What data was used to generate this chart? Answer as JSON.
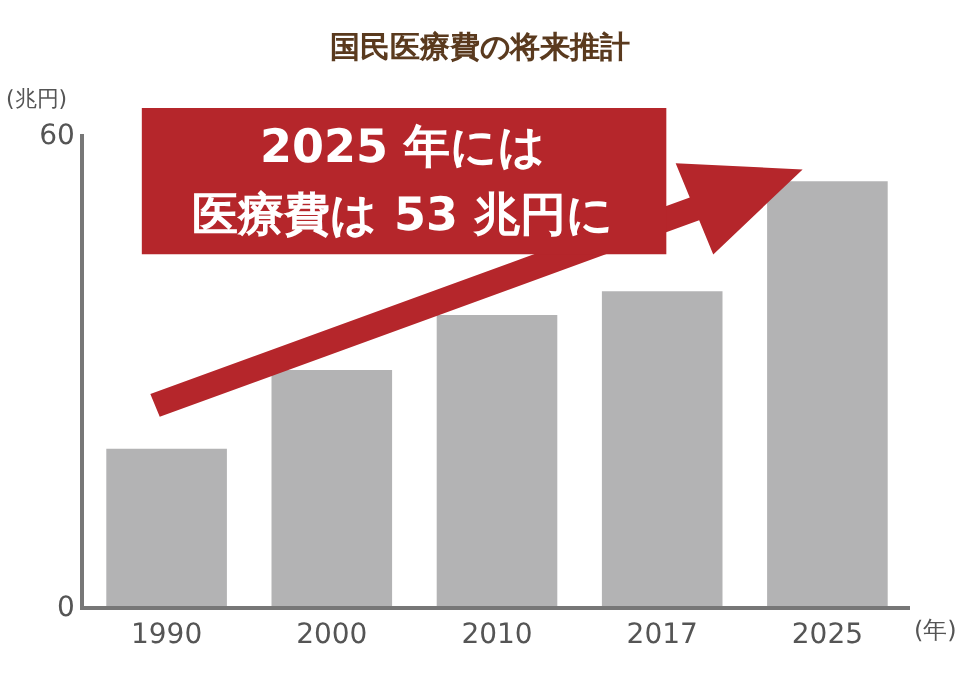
{
  "chart_data": {
    "type": "bar",
    "title": "国民医療費の将来推計",
    "categories": [
      "1990",
      "2000",
      "2010",
      "2017",
      "2025"
    ],
    "values": [
      20,
      30,
      37,
      40,
      54
    ],
    "color": "#b3b3b4",
    "ylabel": "(兆円)",
    "xlabel": "(年)",
    "ylim": [
      0,
      60
    ],
    "yticks": [
      0,
      60
    ],
    "legend": false,
    "annotations": [
      "2025 年には",
      "医療費は 53 兆円に"
    ]
  }
}
